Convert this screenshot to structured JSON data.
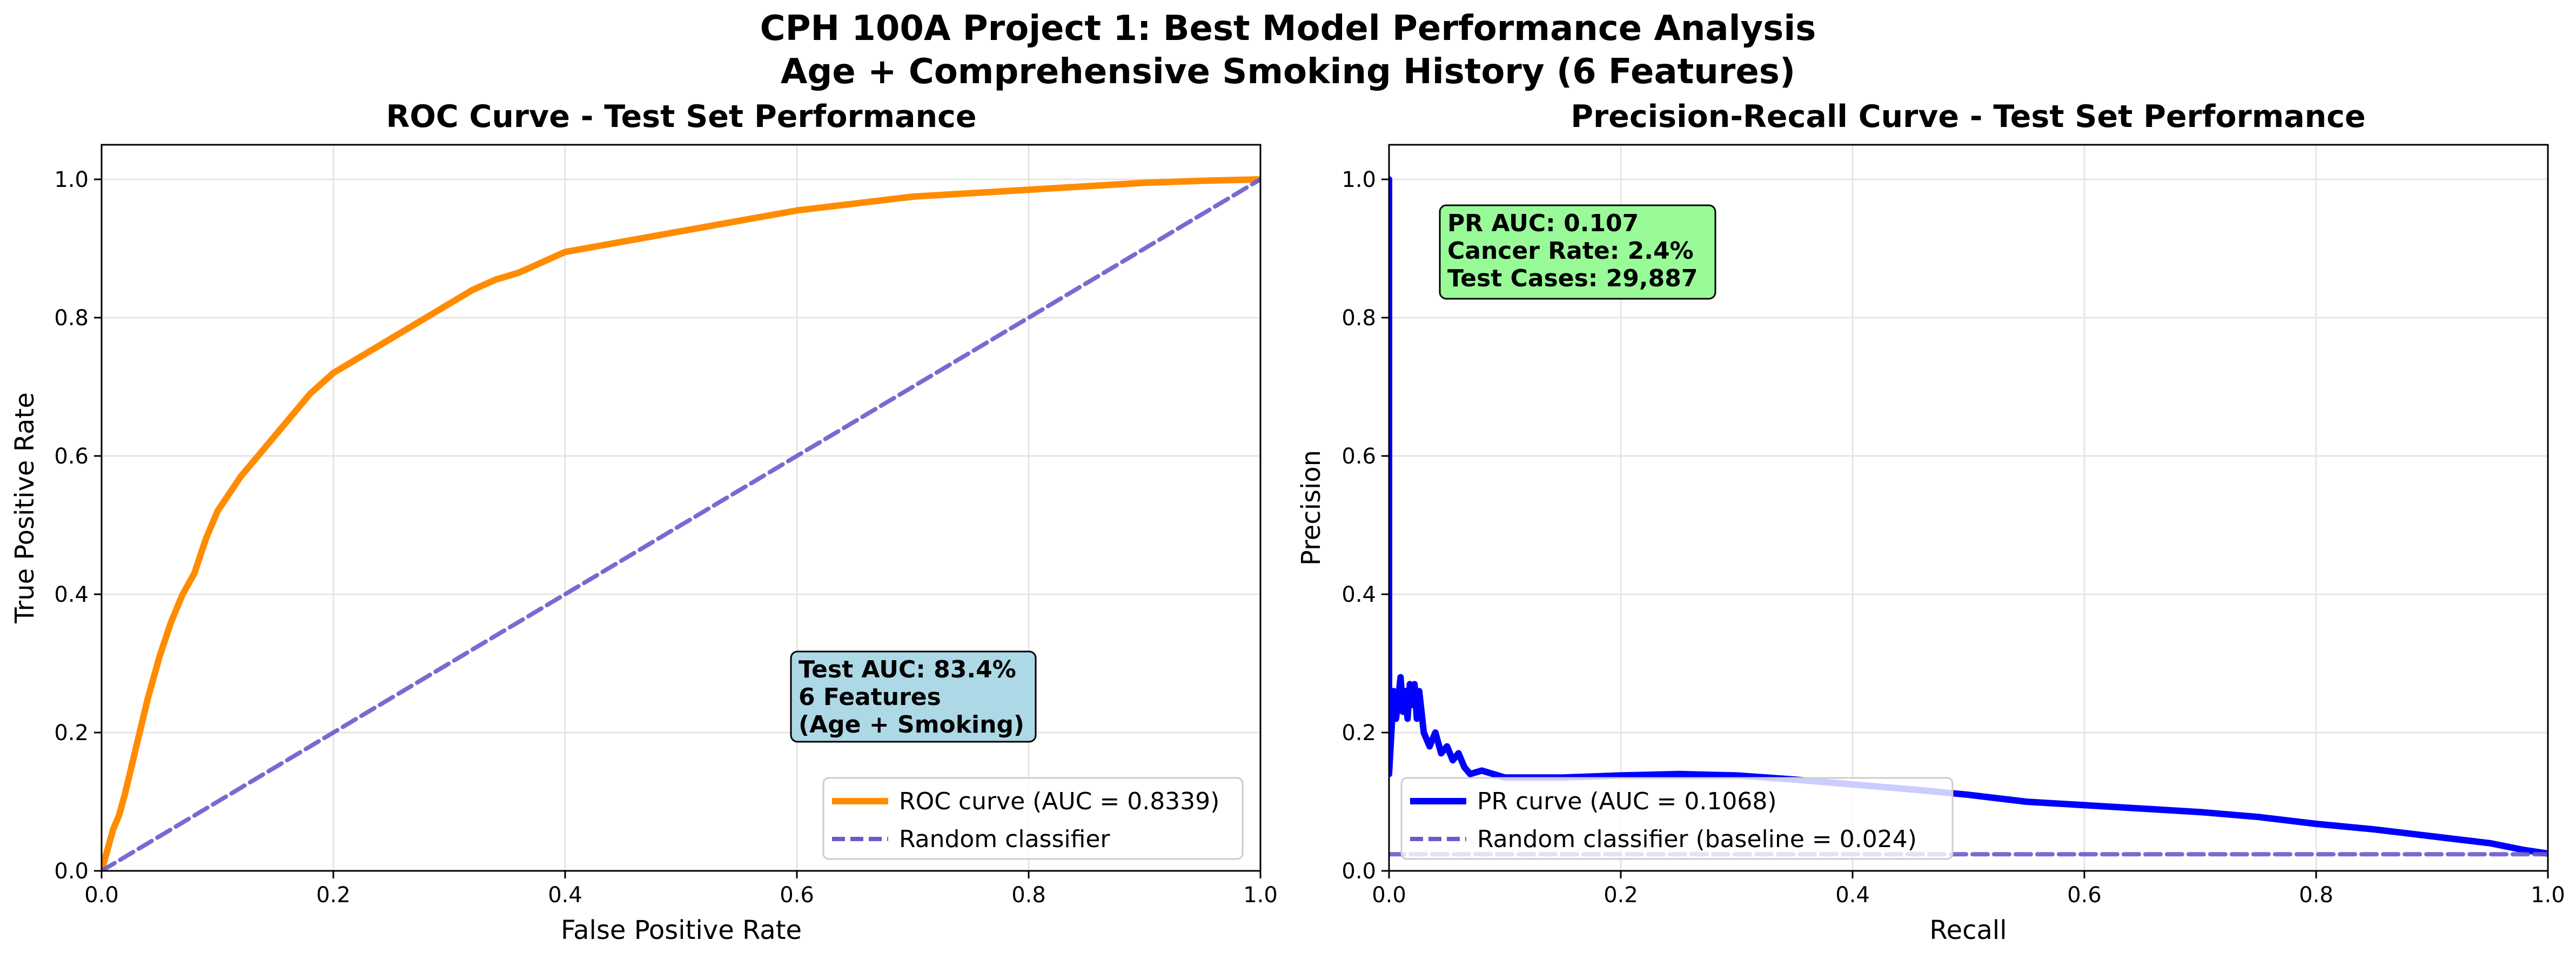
{
  "figure": {
    "suptitle_line1": "CPH 100A Project 1: Best Model Performance Analysis",
    "suptitle_line2": "Age + Comprehensive Smoking History (6 Features)"
  },
  "chart_data": [
    {
      "type": "line",
      "title": "ROC Curve - Test Set Performance",
      "xlabel": "False Positive Rate",
      "ylabel": "True Positive Rate",
      "xlim": [
        0,
        1
      ],
      "ylim": [
        0,
        1.05
      ],
      "xticks": [
        "0.0",
        "0.2",
        "0.4",
        "0.6",
        "0.8",
        "1.0"
      ],
      "yticks": [
        "0.0",
        "0.2",
        "0.4",
        "0.6",
        "0.8",
        "1.0"
      ],
      "grid": true,
      "legend_position": "lower-right",
      "annotation": [
        "Test AUC: 83.4%",
        "6 Features",
        "(Age + Smoking)"
      ],
      "annotation_color": "#add8e6",
      "series": [
        {
          "name": "ROC curve (AUC = 0.8339)",
          "color": "#ff8c00",
          "style": "solid",
          "x": [
            0,
            0.005,
            0.01,
            0.015,
            0.02,
            0.03,
            0.04,
            0.05,
            0.06,
            0.07,
            0.08,
            0.09,
            0.1,
            0.12,
            0.14,
            0.16,
            0.18,
            0.2,
            0.22,
            0.24,
            0.26,
            0.28,
            0.3,
            0.32,
            0.34,
            0.36,
            0.38,
            0.4,
            0.45,
            0.5,
            0.55,
            0.6,
            0.65,
            0.7,
            0.75,
            0.8,
            0.85,
            0.9,
            0.95,
            1.0
          ],
          "y": [
            0,
            0.03,
            0.06,
            0.08,
            0.11,
            0.18,
            0.25,
            0.31,
            0.36,
            0.4,
            0.43,
            0.48,
            0.52,
            0.57,
            0.61,
            0.65,
            0.69,
            0.72,
            0.74,
            0.76,
            0.78,
            0.8,
            0.82,
            0.84,
            0.855,
            0.865,
            0.88,
            0.895,
            0.91,
            0.925,
            0.94,
            0.955,
            0.965,
            0.975,
            0.98,
            0.985,
            0.99,
            0.995,
            0.998,
            1.0
          ]
        },
        {
          "name": "Random classifier",
          "color": "#6a5acd",
          "style": "dashed",
          "x": [
            0,
            1
          ],
          "y": [
            0,
            1
          ]
        }
      ]
    },
    {
      "type": "line",
      "title": "Precision-Recall Curve - Test Set Performance",
      "xlabel": "Recall",
      "ylabel": "Precision",
      "xlim": [
        0,
        1
      ],
      "ylim": [
        0,
        1.05
      ],
      "xticks": [
        "0.0",
        "0.2",
        "0.4",
        "0.6",
        "0.8",
        "1.0"
      ],
      "yticks": [
        "0.0",
        "0.2",
        "0.4",
        "0.6",
        "0.8",
        "1.0"
      ],
      "grid": true,
      "legend_position": "lower-left",
      "annotation": [
        "PR AUC: 0.107",
        "Cancer Rate: 2.4%",
        "Test Cases: 29,887"
      ],
      "annotation_color": "#98fb98",
      "series": [
        {
          "name": "PR curve (AUC = 0.1068)",
          "color": "#0000ff",
          "style": "solid",
          "x": [
            0,
            0,
            0.002,
            0.004,
            0.006,
            0.008,
            0.01,
            0.012,
            0.014,
            0.016,
            0.018,
            0.02,
            0.022,
            0.024,
            0.026,
            0.028,
            0.03,
            0.035,
            0.04,
            0.045,
            0.05,
            0.055,
            0.06,
            0.065,
            0.07,
            0.08,
            0.1,
            0.15,
            0.2,
            0.25,
            0.3,
            0.35,
            0.4,
            0.45,
            0.5,
            0.55,
            0.6,
            0.65,
            0.7,
            0.75,
            0.8,
            0.85,
            0.9,
            0.95,
            0.98,
            1.0
          ],
          "y": [
            1.0,
            0.14,
            0.2,
            0.26,
            0.22,
            0.25,
            0.28,
            0.23,
            0.26,
            0.22,
            0.27,
            0.24,
            0.27,
            0.22,
            0.26,
            0.23,
            0.2,
            0.18,
            0.2,
            0.17,
            0.18,
            0.16,
            0.17,
            0.15,
            0.14,
            0.145,
            0.135,
            0.135,
            0.138,
            0.14,
            0.138,
            0.132,
            0.125,
            0.118,
            0.11,
            0.1,
            0.095,
            0.09,
            0.085,
            0.078,
            0.068,
            0.06,
            0.05,
            0.04,
            0.03,
            0.025
          ]
        },
        {
          "name": "Random classifier (baseline = 0.024)",
          "color": "#6a5acd",
          "style": "dashed",
          "x": [
            0,
            1
          ],
          "y": [
            0.024,
            0.024
          ]
        }
      ]
    }
  ]
}
